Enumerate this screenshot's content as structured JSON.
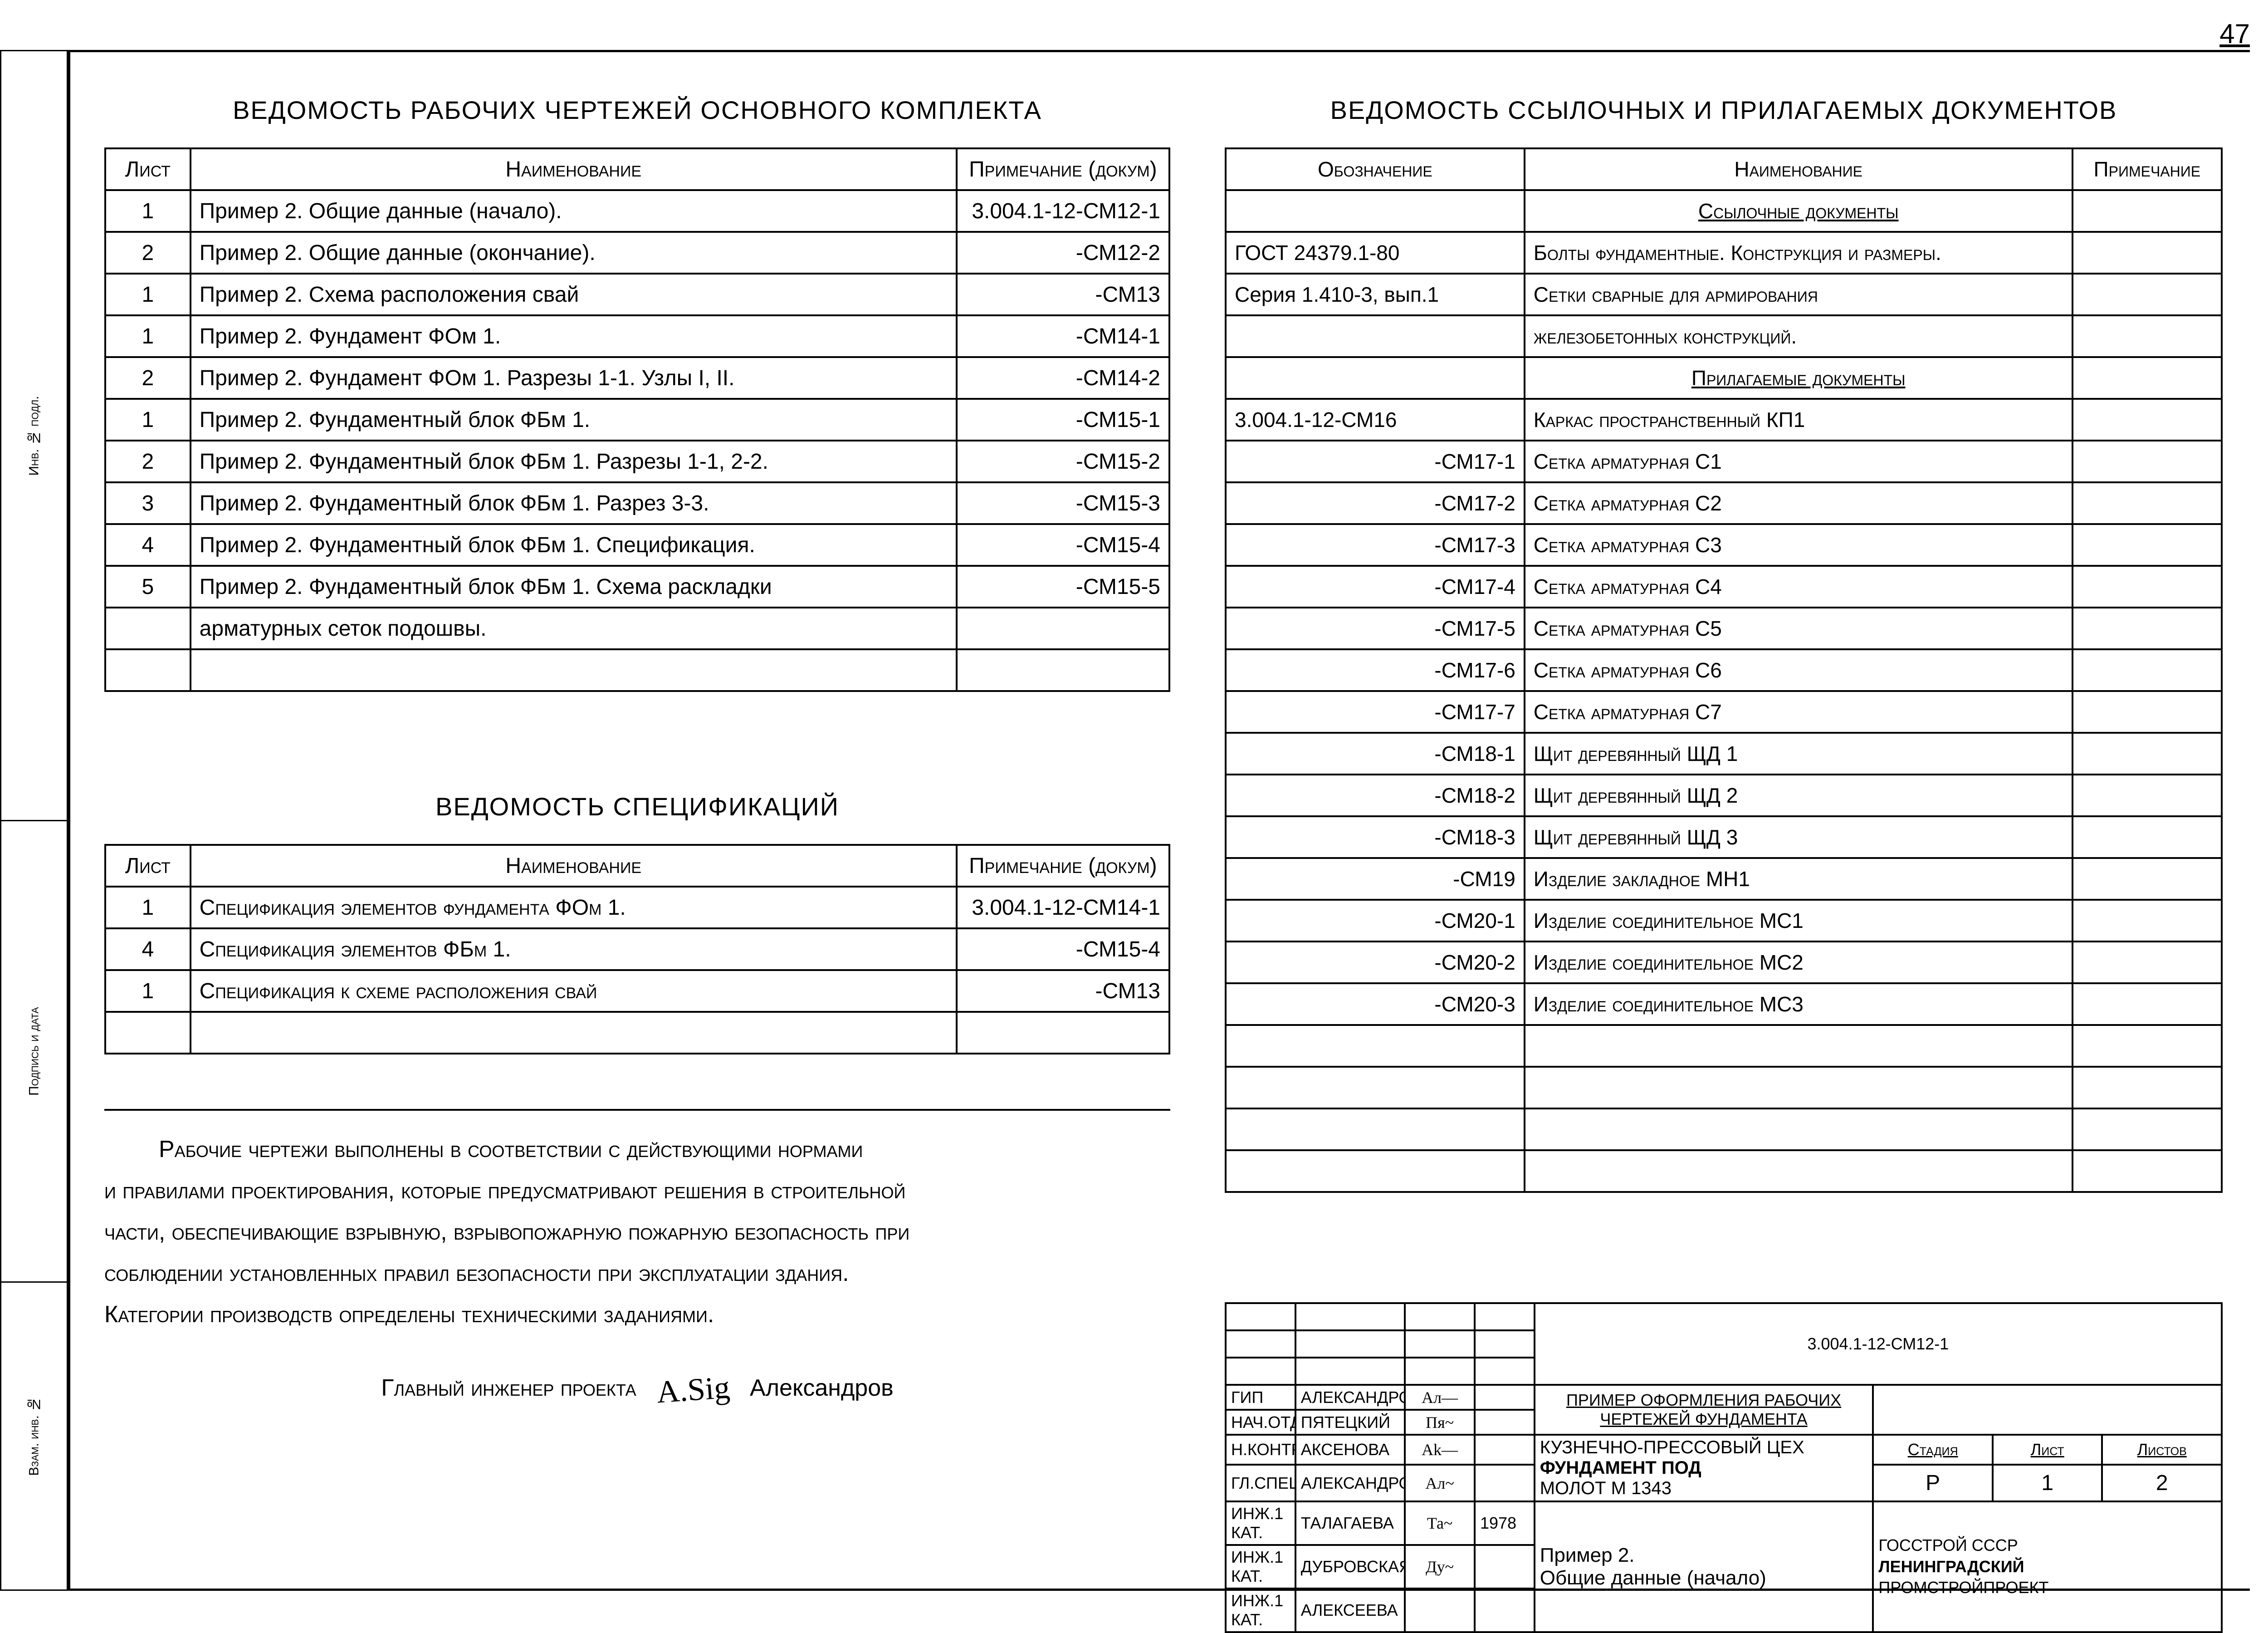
{
  "page_number": "47",
  "left": {
    "table1": {
      "title": "ВЕДОМОСТЬ РАБОЧИХ ЧЕРТЕЖЕЙ ОСНОВНОГО КОМПЛЕКТА",
      "headers": {
        "sheet": "Лист",
        "name": "Наименование",
        "note": "Примечание (докум)"
      },
      "rows": [
        {
          "sheet": "1",
          "name": "Пример 2. Общие данные (начало).",
          "note": "3.004.1-12-СМ12-1"
        },
        {
          "sheet": "2",
          "name": "Пример 2. Общие данные (окончание).",
          "note": "-СМ12-2"
        },
        {
          "sheet": "1",
          "name": "Пример 2. Схема расположения свай",
          "note": "-СМ13"
        },
        {
          "sheet": "1",
          "name": "Пример 2. Фундамент ФОм 1.",
          "note": "-СМ14-1"
        },
        {
          "sheet": "2",
          "name": "Пример 2. Фундамент ФОм 1. Разрезы 1-1. Узлы I, II.",
          "note": "-СМ14-2"
        },
        {
          "sheet": "1",
          "name": "Пример 2. Фундаментный блок ФБм 1.",
          "note": "-СМ15-1"
        },
        {
          "sheet": "2",
          "name": "Пример 2. Фундаментный блок ФБм 1. Разрезы 1-1, 2-2.",
          "note": "-СМ15-2"
        },
        {
          "sheet": "3",
          "name": "Пример 2. Фундаментный блок ФБм 1. Разрез 3-3.",
          "note": "-СМ15-3"
        },
        {
          "sheet": "4",
          "name": "Пример 2. Фундаментный блок ФБм 1. Спецификация.",
          "note": "-СМ15-4"
        },
        {
          "sheet": "5",
          "name": "Пример 2. Фундаментный блок ФБм 1. Схема раскладки",
          "note": "-СМ15-5"
        },
        {
          "sheet": "",
          "name": "арматурных сеток подошвы.",
          "note": ""
        },
        {
          "sheet": "",
          "name": "",
          "note": ""
        }
      ]
    },
    "table2": {
      "title": "ВЕДОМОСТЬ СПЕЦИФИКАЦИЙ",
      "headers": {
        "sheet": "Лист",
        "name": "Наименование",
        "note": "Примечание (докум)"
      },
      "rows": [
        {
          "sheet": "1",
          "name": "Спецификация элементов фундамента ФОм 1.",
          "note": "3.004.1-12-СМ14-1"
        },
        {
          "sheet": "4",
          "name": "Спецификация элементов ФБм 1.",
          "note": "-СМ15-4"
        },
        {
          "sheet": "1",
          "name": "Спецификация к схеме расположения свай",
          "note": "-СМ13"
        },
        {
          "sheet": "",
          "name": "",
          "note": ""
        }
      ]
    },
    "note": {
      "line1": "Рабочие чертежи выполнены в соответствии с действующими нормами",
      "line2": "и правилами проектирования, которые предусматривают решения в строительной",
      "line3": "части, обеспечивающие взрывную, взрывопожарную пожарную безопасность при",
      "line4": "соблюдении установленных правил безопасности при эксплуатации здания.",
      "line5": "Категории производств определены техническими заданиями.",
      "sign_label": "Главный инженер проекта",
      "sign_name": "Александров"
    }
  },
  "right": {
    "ref_table": {
      "title": "ВЕДОМОСТЬ ССЫЛОЧНЫХ И ПРИЛАГАЕМЫХ ДОКУМЕНТОВ",
      "headers": {
        "code": "Обозначение",
        "name": "Наименование",
        "note": "Примечание"
      },
      "section1": "Ссылочные документы",
      "section2": "Прилагаемые документы",
      "rows1": [
        {
          "code": "ГОСТ 24379.1-80",
          "name": "Болты фундаментные. Конструкция и размеры.",
          "note": ""
        },
        {
          "code": "Серия 1.410-3, вып.1",
          "name": "Сетки сварные для армирования",
          "note": ""
        },
        {
          "code": "",
          "name": "железобетонных конструкций.",
          "note": ""
        }
      ],
      "rows2": [
        {
          "code": "3.004.1-12-СМ16",
          "name": "Каркас пространственный КП1",
          "note": ""
        },
        {
          "code": "-СМ17-1",
          "name": "Сетка арматурная С1",
          "note": ""
        },
        {
          "code": "-СМ17-2",
          "name": "Сетка арматурная С2",
          "note": ""
        },
        {
          "code": "-СМ17-3",
          "name": "Сетка арматурная С3",
          "note": ""
        },
        {
          "code": "-СМ17-4",
          "name": "Сетка арматурная С4",
          "note": ""
        },
        {
          "code": "-СМ17-5",
          "name": "Сетка арматурная С5",
          "note": ""
        },
        {
          "code": "-СМ17-6",
          "name": "Сетка арматурная С6",
          "note": ""
        },
        {
          "code": "-СМ17-7",
          "name": "Сетка арматурная С7",
          "note": ""
        },
        {
          "code": "-СМ18-1",
          "name": "Щит деревянный ЩД 1",
          "note": ""
        },
        {
          "code": "-СМ18-2",
          "name": "Щит деревянный ЩД 2",
          "note": ""
        },
        {
          "code": "-СМ18-3",
          "name": "Щит деревянный ЩД 3",
          "note": ""
        },
        {
          "code": "-СМ19",
          "name": "Изделие закладное МН1",
          "note": ""
        },
        {
          "code": "-СМ20-1",
          "name": "Изделие соединительное МС1",
          "note": ""
        },
        {
          "code": "-СМ20-2",
          "name": "Изделие соединительное МС2",
          "note": ""
        },
        {
          "code": "-СМ20-3",
          "name": "Изделие соединительное МС3",
          "note": ""
        },
        {
          "code": "",
          "name": "",
          "note": ""
        },
        {
          "code": "",
          "name": "",
          "note": ""
        },
        {
          "code": "",
          "name": "",
          "note": ""
        },
        {
          "code": "",
          "name": "",
          "note": ""
        }
      ]
    },
    "stamp": {
      "doc_code": "3.004.1-12-СМ12-1",
      "title1": "ПРИМЕР ОФОРМЛЕНИЯ РАБОЧИХ",
      "title2": "ЧЕРТЕЖЕЙ ФУНДАМЕНТА",
      "object1": "КУЗНЕЧНО-ПРЕССОВЫЙ ЦЕХ",
      "object2": "ФУНДАМЕНТ ПОД",
      "object3": "МОЛОТ   М 1343",
      "sheet_title1": "Пример 2.",
      "sheet_title2": "Общие данные (начало)",
      "stage_h": "Стадия",
      "sheet_h": "Лист",
      "sheets_h": "Листов",
      "stage": "Р",
      "sheet": "1",
      "sheets": "2",
      "org1": "ГОССТРОЙ СССР",
      "org2": "ЛЕНИНГРАДСКИЙ",
      "org3": "ПРОМСТРОЙПРОЕКТ",
      "roles": [
        {
          "role": "ГИП",
          "name": "АЛЕКСАНДРОВ"
        },
        {
          "role": "НАЧ.ОТДЕЛА",
          "name": "ПЯТЕЦКИЙ"
        },
        {
          "role": "Н.КОНТР.",
          "name": "АКСЕНОВА"
        },
        {
          "role": "ГЛ.СПЕЦ.",
          "name": "АЛЕКСАНДРОВ"
        },
        {
          "role": "ИНЖ.1 КАТ.",
          "name": "ТАЛАГАЕВА"
        },
        {
          "role": "ИНЖ.1 КАТ.",
          "name": "ДУБРОВСКАЯ"
        },
        {
          "role": "ИНЖ.1 КАТ.",
          "name": "АЛЕКСЕЕВА"
        }
      ]
    }
  },
  "binding": {
    "c1": "Инв. № подл.",
    "c2": "Подпись и дата",
    "c3": "Взам. инв. №"
  }
}
